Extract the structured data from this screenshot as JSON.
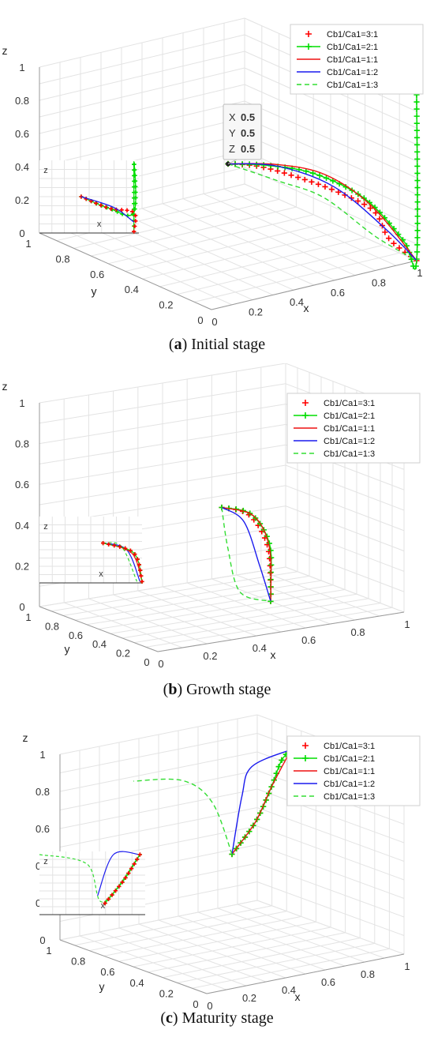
{
  "legend_entries": [
    "Cb1/Ca1=3:1",
    "Cb1/Ca1=2:1",
    "Cb1/Ca1=1:1",
    "Cb1/Ca1=1:2",
    "Cb1/Ca1=1:3"
  ],
  "series_styles": [
    {
      "color": "#ff0000",
      "line": "none",
      "marker": "plus"
    },
    {
      "color": "#00dd00",
      "line": "solid",
      "marker": "plus"
    },
    {
      "color": "#ee1111",
      "line": "solid",
      "marker": "none"
    },
    {
      "color": "#1a1aee",
      "line": "solid",
      "marker": "none"
    },
    {
      "color": "#33dd33",
      "line": "dashed",
      "marker": "none"
    }
  ],
  "axis_labels": {
    "x": "x",
    "y": "y",
    "z": "z"
  },
  "panels": [
    {
      "letter": "a",
      "caption": "Initial stage",
      "datatip": {
        "X_label": "X",
        "X": "0.5",
        "Y_label": "Y",
        "Y": "0.5",
        "Z_label": "Z",
        "Z": "0.5"
      },
      "z_ticks": [
        "0",
        "0.2",
        "0.4",
        "0.6",
        "0.8",
        "1"
      ],
      "y_ticks": [
        "1",
        "0.8",
        "0.6",
        "0.4",
        "0.2",
        "0"
      ],
      "x_ticks": [
        "0",
        "0.2",
        "0.4",
        "0.6",
        "0.8",
        "1"
      ]
    },
    {
      "letter": "b",
      "caption": "Growth stage",
      "z_ticks": [
        "0",
        "0.2",
        "0.4",
        "0.6",
        "0.8",
        "1"
      ],
      "y_ticks": [
        "1",
        "0.8",
        "0.6",
        "0.4",
        "0.2",
        "0"
      ],
      "x_ticks": [
        "0",
        "0.2",
        "0.4",
        "0.6",
        "0.8",
        "1"
      ]
    },
    {
      "letter": "c",
      "caption": "Maturity stage",
      "z_ticks": [
        "0",
        "0.2",
        "0.4",
        "0.6",
        "0.8",
        "1"
      ],
      "y_ticks": [
        "1",
        "0.8",
        "0.6",
        "0.4",
        "0.2",
        "0"
      ],
      "x_ticks": [
        "0",
        "0.2",
        "0.4",
        "0.6",
        "0.8",
        "1"
      ]
    }
  ],
  "chart_data": [
    {
      "type": "line",
      "title": "",
      "projection": "3d",
      "xlabel": "x",
      "ylabel": "y",
      "zlabel": "z",
      "xlim": [
        0,
        1
      ],
      "ylim": [
        0,
        1
      ],
      "zlim": [
        0,
        1
      ],
      "grid": true,
      "legend_position": "top-right",
      "series": [
        {
          "name": "Cb1/Ca1=3:1",
          "points": [
            [
              0.5,
              0.5,
              0.5
            ],
            [
              0.62,
              0.45,
              0.47
            ],
            [
              0.75,
              0.35,
              0.4
            ],
            [
              0.85,
              0.25,
              0.33
            ],
            [
              0.92,
              0.15,
              0.25
            ],
            [
              0.95,
              0.1,
              0.1
            ],
            [
              1,
              0,
              0
            ]
          ]
        },
        {
          "name": "Cb1/Ca1=2:1",
          "points": [
            [
              0.5,
              0.5,
              0.5
            ],
            [
              0.65,
              0.45,
              0.47
            ],
            [
              0.8,
              0.35,
              0.42
            ],
            [
              0.92,
              0.2,
              0.3
            ],
            [
              0.98,
              0.05,
              0.1
            ],
            [
              1,
              0,
              0
            ],
            [
              1,
              0,
              1
            ]
          ]
        },
        {
          "name": "Cb1/Ca1=1:1",
          "points": [
            [
              0.5,
              0.5,
              0.5
            ],
            [
              0.7,
              0.45,
              0.46
            ],
            [
              0.85,
              0.35,
              0.4
            ],
            [
              0.95,
              0.2,
              0.25
            ],
            [
              1,
              0,
              0
            ]
          ]
        },
        {
          "name": "Cb1/Ca1=1:2",
          "points": [
            [
              0.5,
              0.5,
              0.5
            ],
            [
              0.7,
              0.45,
              0.45
            ],
            [
              0.85,
              0.3,
              0.35
            ],
            [
              0.95,
              0.12,
              0.15
            ],
            [
              1,
              0,
              0
            ]
          ]
        },
        {
          "name": "Cb1/Ca1=1:3",
          "points": [
            [
              0.5,
              0.5,
              0.5
            ],
            [
              0.68,
              0.42,
              0.38
            ],
            [
              0.8,
              0.3,
              0.3
            ],
            [
              0.9,
              0.12,
              0.12
            ],
            [
              1,
              0,
              0
            ]
          ]
        }
      ]
    },
    {
      "type": "line",
      "title": "",
      "projection": "3d",
      "xlabel": "x",
      "ylabel": "y",
      "zlabel": "z",
      "xlim": [
        0,
        1
      ],
      "ylim": [
        0,
        1
      ],
      "zlim": [
        0,
        1
      ],
      "grid": true,
      "legend_position": "top-right",
      "series": [
        {
          "name": "Cb1/Ca1=3:1",
          "points": [
            [
              0.5,
              0.5,
              0.5
            ],
            [
              0.6,
              0.48,
              0.45
            ],
            [
              0.66,
              0.45,
              0.3
            ],
            [
              0.67,
              0.44,
              0.1
            ],
            [
              0.67,
              0.44,
              0.02
            ]
          ]
        },
        {
          "name": "Cb1/Ca1=2:1",
          "points": [
            [
              0.5,
              0.5,
              0.5
            ],
            [
              0.61,
              0.48,
              0.45
            ],
            [
              0.67,
              0.45,
              0.3
            ],
            [
              0.67,
              0.44,
              0.1
            ],
            [
              0.67,
              0.44,
              0.02
            ]
          ]
        },
        {
          "name": "Cb1/Ca1=1:1",
          "points": [
            [
              0.5,
              0.5,
              0.5
            ],
            [
              0.62,
              0.48,
              0.44
            ],
            [
              0.67,
              0.45,
              0.28
            ],
            [
              0.67,
              0.44,
              0.02
            ]
          ]
        },
        {
          "name": "Cb1/Ca1=1:2",
          "points": [
            [
              0.5,
              0.5,
              0.5
            ],
            [
              0.58,
              0.48,
              0.42
            ],
            [
              0.63,
              0.45,
              0.2
            ],
            [
              0.67,
              0.44,
              0.02
            ]
          ]
        },
        {
          "name": "Cb1/Ca1=1:3",
          "points": [
            [
              0.5,
              0.5,
              0.5
            ],
            [
              0.52,
              0.49,
              0.3
            ],
            [
              0.56,
              0.47,
              0.08
            ],
            [
              0.67,
              0.44,
              0.02
            ]
          ]
        }
      ]
    },
    {
      "type": "line",
      "title": "",
      "projection": "3d",
      "xlabel": "x",
      "ylabel": "y",
      "zlabel": "z",
      "xlim": [
        0,
        1
      ],
      "ylim": [
        0,
        1
      ],
      "zlim": [
        0,
        1
      ],
      "grid": true,
      "legend_position": "top-right",
      "series": [
        {
          "name": "Cb1/Ca1=3:1",
          "points": [
            [
              0.5,
              0.5,
              0.5
            ],
            [
              0.62,
              0.5,
              0.65
            ],
            [
              0.7,
              0.5,
              0.82
            ],
            [
              0.75,
              0.5,
              0.95
            ],
            [
              0.8,
              0.5,
              1.0
            ]
          ]
        },
        {
          "name": "Cb1/Ca1=2:1",
          "points": [
            [
              0.5,
              0.5,
              0.5
            ],
            [
              0.62,
              0.5,
              0.65
            ],
            [
              0.7,
              0.5,
              0.82
            ],
            [
              0.75,
              0.5,
              0.95
            ],
            [
              0.8,
              0.5,
              1.0
            ]
          ]
        },
        {
          "name": "Cb1/Ca1=1:1",
          "points": [
            [
              0.5,
              0.5,
              0.5
            ],
            [
              0.62,
              0.5,
              0.65
            ],
            [
              0.7,
              0.5,
              0.82
            ],
            [
              0.8,
              0.5,
              1.0
            ]
          ]
        },
        {
          "name": "Cb1/Ca1=1:2",
          "points": [
            [
              0.5,
              0.5,
              0.5
            ],
            [
              0.55,
              0.5,
              0.8
            ],
            [
              0.6,
              0.5,
              0.95
            ],
            [
              0.8,
              0.5,
              1.0
            ]
          ]
        },
        {
          "name": "Cb1/Ca1=1:3",
          "points": [
            [
              0.5,
              0.5,
              0.5
            ],
            [
              0.4,
              0.5,
              0.8
            ],
            [
              0.25,
              0.5,
              0.95
            ],
            [
              0,
              0.5,
              1.0
            ]
          ]
        }
      ]
    }
  ]
}
